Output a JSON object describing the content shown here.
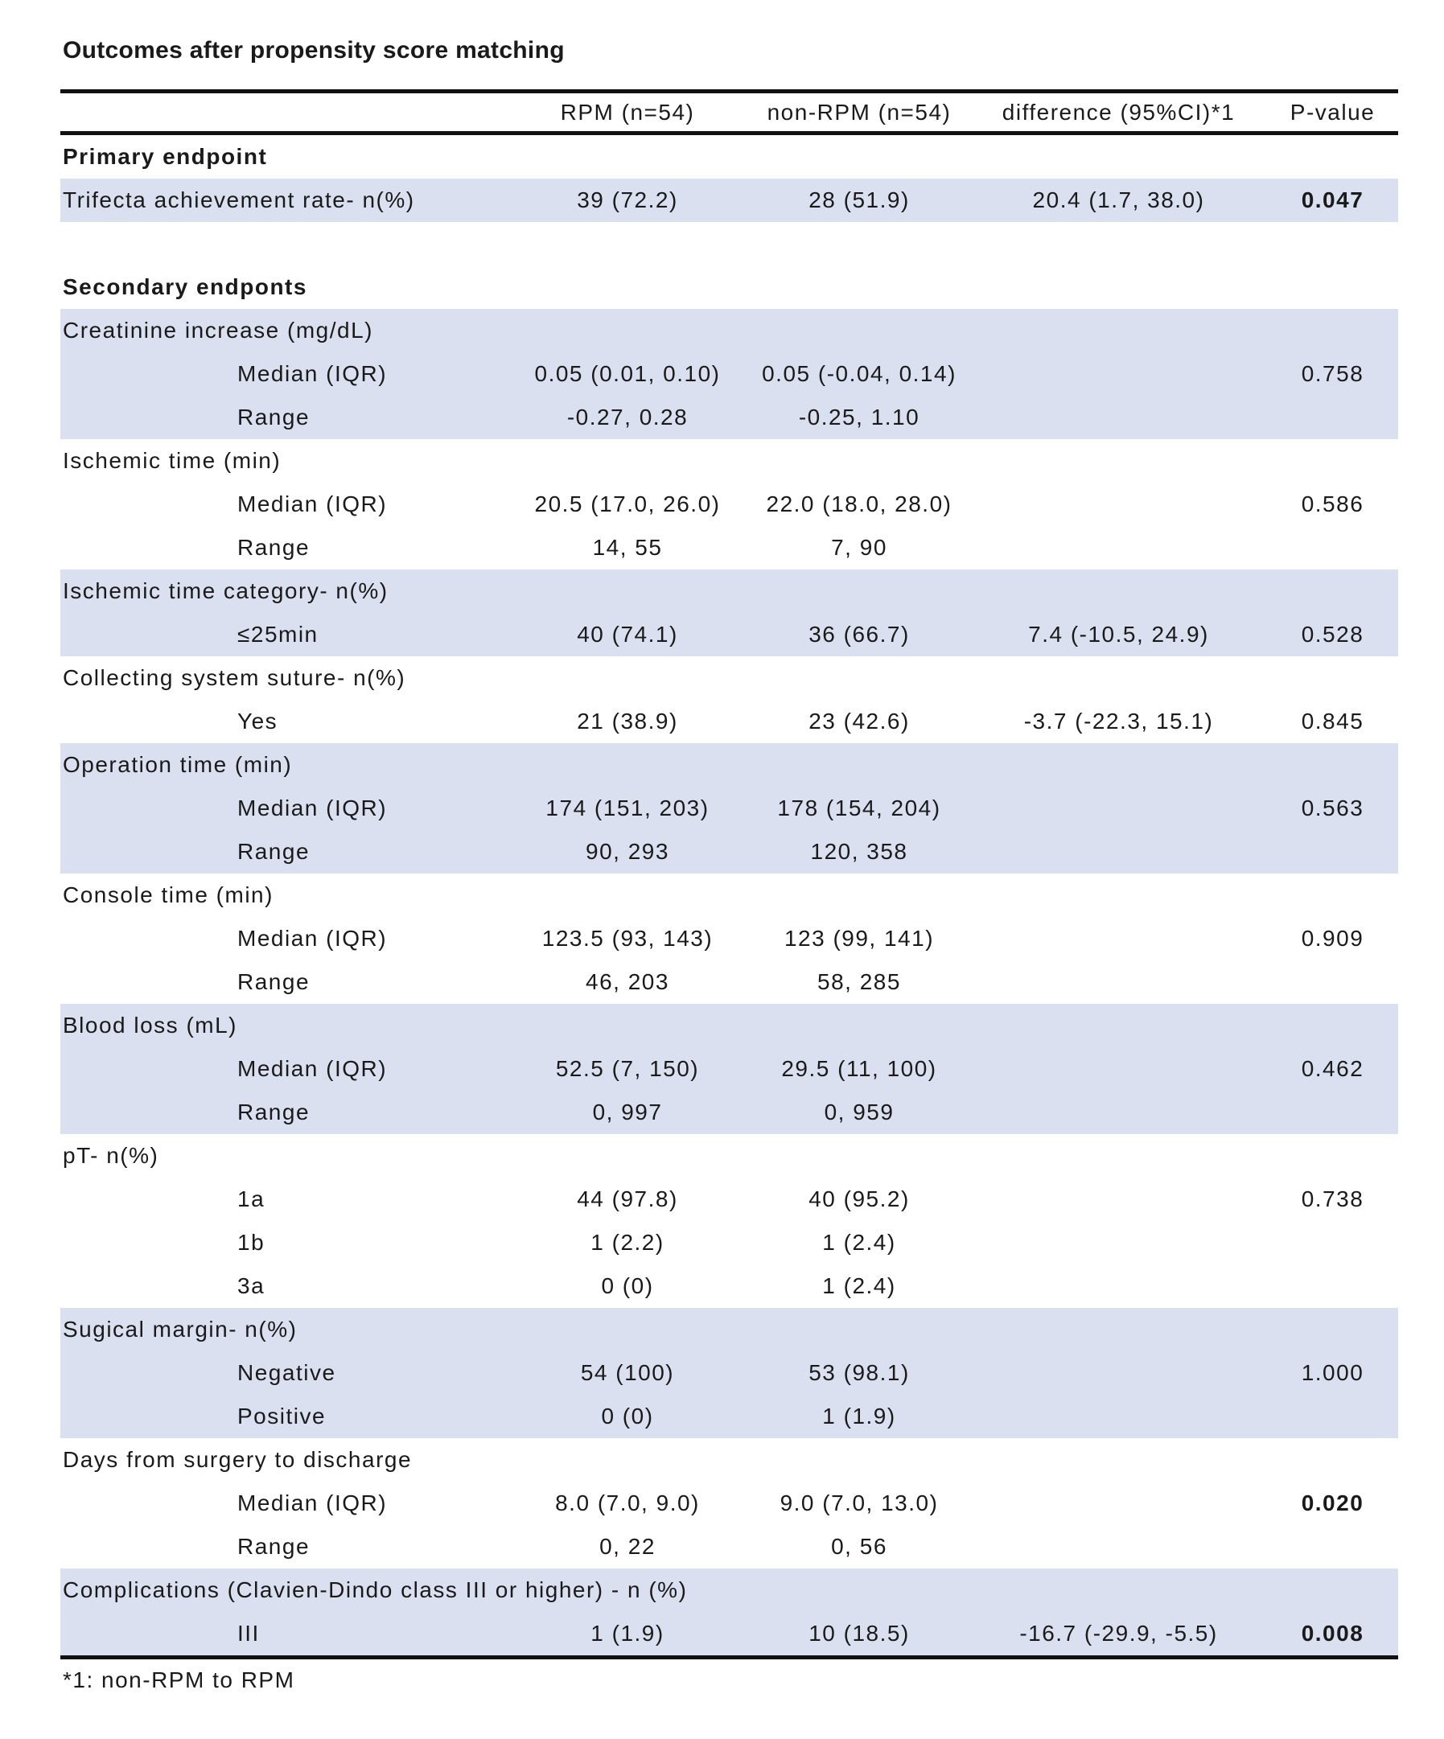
{
  "colors": {
    "row_shading": "#dbe0f1",
    "rule": "#111111",
    "text": "#1a1a1a"
  },
  "table": {
    "title": "Outcomes after propensity score matching",
    "columns": [
      "",
      "RPM (n=54)",
      "non-RPM (n=54)",
      "difference (95%CI)*1",
      "P-value"
    ],
    "footnote": "*1: non-RPM to RPM",
    "sections": [
      {
        "name": "primary-endpoint",
        "shaded": false,
        "header": {
          "label": "Primary endpoint",
          "bold": true
        },
        "rows": []
      },
      {
        "name": "trifecta",
        "shaded": true,
        "rows": [
          {
            "label": "Trifecta achievement rate- n(%)",
            "indent": false,
            "rpm": "39 (72.2)",
            "non_rpm": "28 (51.9)",
            "difference": "20.4 (1.7, 38.0)",
            "p": "0.047",
            "p_bold": true
          }
        ]
      },
      {
        "name": "spacer-1",
        "spacer": true,
        "rows": []
      },
      {
        "name": "secondary-endpoints",
        "shaded": false,
        "header": {
          "label": "Secondary endponts",
          "bold": true
        },
        "rows": []
      },
      {
        "name": "creatinine-increase",
        "shaded": true,
        "header": {
          "label": "Creatinine increase (mg/dL)",
          "bold": false
        },
        "rows": [
          {
            "label": "Median (IQR)",
            "indent": true,
            "rpm": "0.05 (0.01, 0.10)",
            "non_rpm": "0.05 (-0.04, 0.14)",
            "difference": "",
            "p": "0.758"
          },
          {
            "label": "Range",
            "indent": true,
            "rpm": "-0.27, 0.28",
            "non_rpm": "-0.25, 1.10",
            "difference": "",
            "p": ""
          }
        ]
      },
      {
        "name": "ischemic-time",
        "shaded": false,
        "header": {
          "label": "Ischemic time (min)",
          "bold": false
        },
        "rows": [
          {
            "label": "Median (IQR)",
            "indent": true,
            "rpm": "20.5 (17.0, 26.0)",
            "non_rpm": "22.0 (18.0, 28.0)",
            "difference": "",
            "p": "0.586"
          },
          {
            "label": "Range",
            "indent": true,
            "rpm": "14, 55",
            "non_rpm": "7, 90",
            "difference": "",
            "p": ""
          }
        ]
      },
      {
        "name": "ischemic-time-category",
        "shaded": true,
        "header": {
          "label": "Ischemic time category- n(%)",
          "bold": false
        },
        "rows": [
          {
            "label": "≤25min",
            "indent": true,
            "rpm": "40 (74.1)",
            "non_rpm": "36 (66.7)",
            "difference": "7.4 (-10.5, 24.9)",
            "p": "0.528"
          }
        ]
      },
      {
        "name": "collecting-system-suture",
        "shaded": false,
        "header": {
          "label": "Collecting system suture- n(%)",
          "bold": false
        },
        "rows": [
          {
            "label": "Yes",
            "indent": true,
            "rpm": "21 (38.9)",
            "non_rpm": "23 (42.6)",
            "difference": "-3.7 (-22.3, 15.1)",
            "p": "0.845"
          }
        ]
      },
      {
        "name": "operation-time",
        "shaded": true,
        "header": {
          "label": "Operation time (min)",
          "bold": false
        },
        "rows": [
          {
            "label": "Median (IQR)",
            "indent": true,
            "rpm": "174 (151, 203)",
            "non_rpm": "178 (154, 204)",
            "difference": "",
            "p": "0.563"
          },
          {
            "label": "Range",
            "indent": true,
            "rpm": "90, 293",
            "non_rpm": "120, 358",
            "difference": "",
            "p": ""
          }
        ]
      },
      {
        "name": "console-time",
        "shaded": false,
        "header": {
          "label": "Console time (min)",
          "bold": false
        },
        "rows": [
          {
            "label": "Median (IQR)",
            "indent": true,
            "rpm": "123.5 (93, 143)",
            "non_rpm": "123 (99, 141)",
            "difference": "",
            "p": "0.909"
          },
          {
            "label": "Range",
            "indent": true,
            "rpm": "46, 203",
            "non_rpm": "58, 285",
            "difference": "",
            "p": ""
          }
        ]
      },
      {
        "name": "blood-loss",
        "shaded": true,
        "header": {
          "label": "Blood loss (mL)",
          "bold": false
        },
        "rows": [
          {
            "label": "Median (IQR)",
            "indent": true,
            "rpm": "52.5 (7, 150)",
            "non_rpm": "29.5 (11, 100)",
            "difference": "",
            "p": "0.462"
          },
          {
            "label": "Range",
            "indent": true,
            "rpm": "0, 997",
            "non_rpm": "0, 959",
            "difference": "",
            "p": ""
          }
        ]
      },
      {
        "name": "pt-stage",
        "shaded": false,
        "header": {
          "label": "pT- n(%)",
          "bold": false
        },
        "rows": [
          {
            "label": "1a",
            "indent": true,
            "rpm": "44 (97.8)",
            "non_rpm": "40 (95.2)",
            "difference": "",
            "p": "0.738"
          },
          {
            "label": "1b",
            "indent": true,
            "rpm": "1 (2.2)",
            "non_rpm": "1 (2.4)",
            "difference": "",
            "p": ""
          },
          {
            "label": "3a",
            "indent": true,
            "rpm": "0 (0)",
            "non_rpm": "1 (2.4)",
            "difference": "",
            "p": ""
          }
        ]
      },
      {
        "name": "surgical-margin",
        "shaded": true,
        "header": {
          "label": "Sugical margin- n(%)",
          "bold": false
        },
        "rows": [
          {
            "label": "Negative",
            "indent": true,
            "rpm": "54 (100)",
            "non_rpm": "53 (98.1)",
            "difference": "",
            "p": "1.000"
          },
          {
            "label": "Positive",
            "indent": true,
            "rpm": "0 (0)",
            "non_rpm": "1 (1.9)",
            "difference": "",
            "p": ""
          }
        ]
      },
      {
        "name": "days-to-discharge",
        "shaded": false,
        "header": {
          "label": "Days from surgery to discharge",
          "bold": false
        },
        "rows": [
          {
            "label": "Median (IQR)",
            "indent": true,
            "rpm": "8.0 (7.0, 9.0)",
            "non_rpm": "9.0 (7.0, 13.0)",
            "difference": "",
            "p": "0.020",
            "p_bold": true
          },
          {
            "label": "Range",
            "indent": true,
            "rpm": "0, 22",
            "non_rpm": "0, 56",
            "difference": "",
            "p": ""
          }
        ]
      },
      {
        "name": "complications",
        "shaded": true,
        "header": {
          "label": "Complications (Clavien-Dindo class III or higher) - n (%)",
          "bold": false
        },
        "rows": [
          {
            "label": "III",
            "indent": true,
            "rpm": "1 (1.9)",
            "non_rpm": "10 (18.5)",
            "difference": "-16.7 (-29.9, -5.5)",
            "p": "0.008",
            "p_bold": true
          }
        ]
      }
    ]
  }
}
